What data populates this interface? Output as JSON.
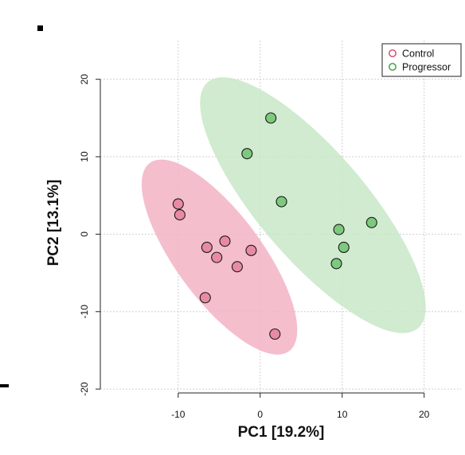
{
  "chart_data": {
    "type": "scatter",
    "xlabel": "PC1 [19.2%]",
    "ylabel": "PC2 [13.1%]",
    "xlim": [
      -19.5,
      24.5
    ],
    "ylim": [
      -20.5,
      25
    ],
    "xticks": [
      -10,
      0,
      10,
      20
    ],
    "yticks": [
      -20,
      -10,
      0,
      10,
      20
    ],
    "x_tick_labels": [
      "-10",
      "0",
      "10",
      "20"
    ],
    "y_tick_labels": [
      "-20",
      "-10",
      "0",
      "10",
      "20"
    ],
    "grid": true,
    "legend_position": "top-right",
    "series": [
      {
        "name": "Control",
        "color": "#d4436a",
        "fill": "#e88aa2",
        "ellipse_fill": "#f2b3c4",
        "points": [
          {
            "x": -10.0,
            "y": 3.9
          },
          {
            "x": -9.8,
            "y": 2.5
          },
          {
            "x": -6.5,
            "y": -1.7
          },
          {
            "x": -5.3,
            "y": -3.0
          },
          {
            "x": -4.3,
            "y": -0.9
          },
          {
            "x": -2.8,
            "y": -4.2
          },
          {
            "x": -1.1,
            "y": -2.1
          },
          {
            "x": -6.7,
            "y": -8.2
          },
          {
            "x": 1.8,
            "y": -12.9
          }
        ]
      },
      {
        "name": "Progressor",
        "color": "#3a9a3a",
        "fill": "#7dc97d",
        "ellipse_fill": "#c8e8c8",
        "points": [
          {
            "x": 1.3,
            "y": 15.0
          },
          {
            "x": -1.6,
            "y": 10.4
          },
          {
            "x": 2.6,
            "y": 4.2
          },
          {
            "x": 9.6,
            "y": 0.6
          },
          {
            "x": 13.6,
            "y": 1.5
          },
          {
            "x": 10.2,
            "y": -1.7
          },
          {
            "x": 9.3,
            "y": -3.8
          }
        ]
      }
    ]
  }
}
